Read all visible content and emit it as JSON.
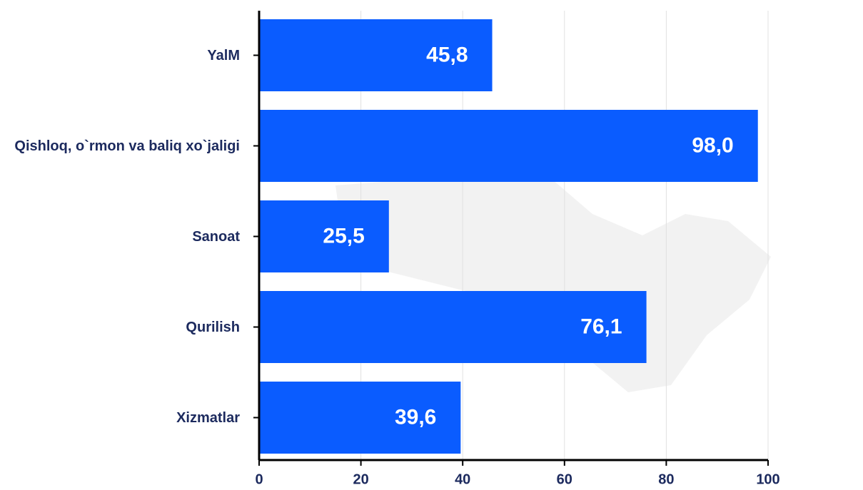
{
  "chart_data": {
    "type": "bar",
    "orientation": "horizontal",
    "categories": [
      "YalM",
      "Qishloq, o`rmon va baliq xo`jaligi",
      "Sanoat",
      "Qurilish",
      "Xizmatlar"
    ],
    "values": [
      45.8,
      98.0,
      25.5,
      76.1,
      39.6
    ],
    "value_labels": [
      "45,8",
      "98,0",
      "25,5",
      "76,1",
      "39,6"
    ],
    "color": "#0a5cff",
    "xlim": [
      0,
      100
    ],
    "xticks": [
      0,
      20,
      40,
      60,
      80,
      100
    ],
    "grid": true
  }
}
